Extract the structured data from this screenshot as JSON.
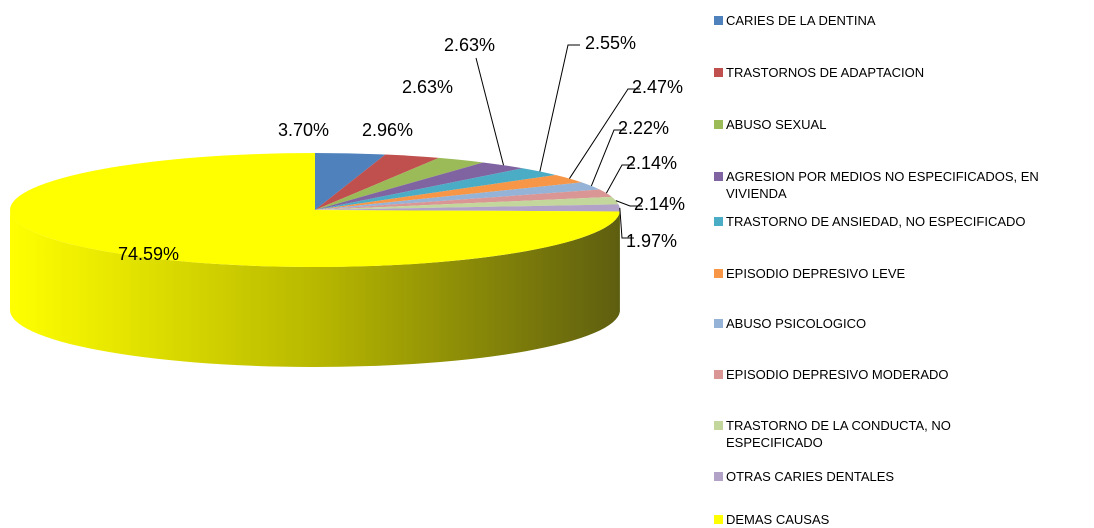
{
  "chart_data": {
    "type": "pie3d",
    "categories": [
      "CARIES DE LA DENTINA",
      "TRASTORNOS DE ADAPTACION",
      "ABUSO SEXUAL",
      "AGRESION POR MEDIOS NO ESPECIFICADOS, EN VIVIENDA",
      "TRASTORNO DE ANSIEDAD, NO ESPECIFICADO",
      "EPISODIO DEPRESIVO LEVE",
      "ABUSO PSICOLOGICO",
      "EPISODIO DEPRESIVO MODERADO",
      "TRASTORNO DE LA CONDUCTA, NO ESPECIFICADO",
      "OTRAS CARIES DENTALES",
      "DEMAS CAUSAS"
    ],
    "values": [
      3.7,
      2.96,
      2.63,
      2.63,
      2.55,
      2.47,
      2.22,
      2.14,
      2.14,
      1.97,
      74.59
    ],
    "value_labels": [
      "3.70%",
      "2.96%",
      "2.63%",
      "2.63%",
      "2.55%",
      "2.47%",
      "2.22%",
      "2.14%",
      "2.14%",
      "1.97%",
      "74.59%"
    ],
    "colors": [
      "#4f81bd",
      "#c0504d",
      "#9bbb59",
      "#8064a2",
      "#4bacc6",
      "#f79646",
      "#95b3d7",
      "#d99694",
      "#c3d69b",
      "#b3a2c7",
      "#ffff00"
    ],
    "legend": "right"
  }
}
